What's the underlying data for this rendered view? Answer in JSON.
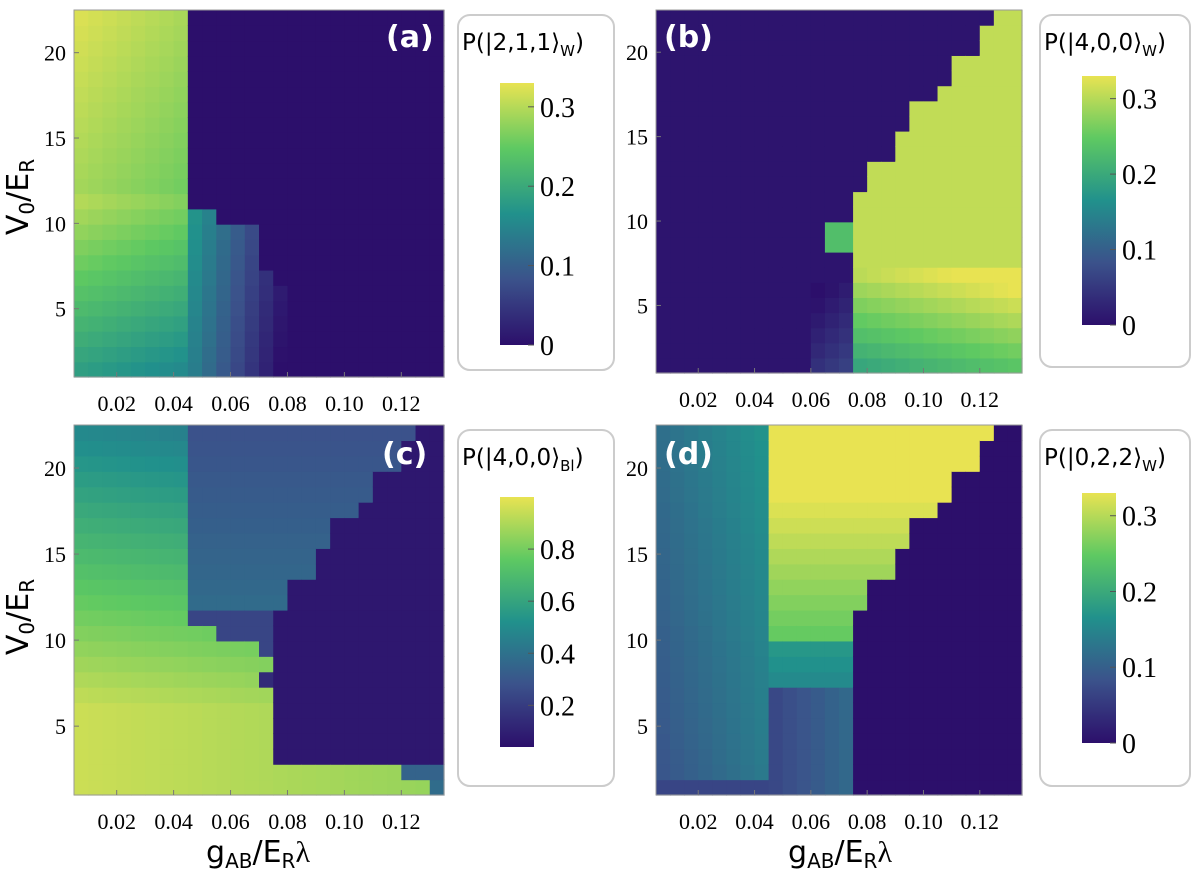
{
  "chart_data": [
    {
      "type": "heatmap",
      "panel": "(a)",
      "colorbar_label": "P(|2,1,1⟩W)",
      "colorbar_title_main": "P(|2,1,1⟩",
      "colorbar_title_sub": "W",
      "colorbar_title_end": ")",
      "colorbar_range": [
        0,
        0.33
      ],
      "colorbar_ticks": [
        0,
        0.1,
        0.2,
        0.3
      ],
      "colorbar_tick_labels": [
        "0",
        "0.1",
        "0.2",
        "0.3"
      ],
      "xlabel": "gAB/ERλ",
      "ylabel": "V0/ER",
      "xlim": [
        0.005,
        0.135
      ],
      "ylim": [
        1,
        22.5
      ],
      "x_ticks": [
        0.02,
        0.04,
        0.06,
        0.08,
        0.1,
        0.12
      ],
      "x_tick_labels": [
        "0.02",
        "0.04",
        "0.06",
        "0.08",
        "0.10",
        "0.12"
      ],
      "y_ticks": [
        5,
        10,
        15,
        20
      ],
      "y_tick_labels": [
        "5",
        "10",
        "15",
        "20"
      ],
      "description_of_regions": "high probability (~0.33) for gAB < 0.045 at large V0, decreasing toward ~0.18 at low V0 and extending to gAB ~0.07 at low V0; ~0 elsewhere"
    },
    {
      "type": "heatmap",
      "panel": "(b)",
      "colorbar_label": "P(|4,0,0⟩W)",
      "colorbar_title_main": "P(|4,0,0⟩",
      "colorbar_title_sub": "W",
      "colorbar_title_end": ")",
      "colorbar_range": [
        0,
        0.33
      ],
      "colorbar_ticks": [
        0,
        0.1,
        0.2,
        0.3
      ],
      "colorbar_tick_labels": [
        "0",
        "0.1",
        "0.2",
        "0.3"
      ],
      "xlabel": "gAB/ERλ",
      "ylabel": "V0/ER",
      "xlim": [
        0.005,
        0.135
      ],
      "ylim": [
        1,
        22.5
      ],
      "x_ticks": [
        0.02,
        0.04,
        0.06,
        0.08,
        0.1,
        0.12
      ],
      "x_tick_labels": [
        "0.02",
        "0.04",
        "0.06",
        "0.08",
        "0.10",
        "0.12"
      ],
      "y_ticks": [
        5,
        10,
        15,
        20
      ],
      "y_tick_labels": [
        "5",
        "10",
        "15",
        "20"
      ],
      "description_of_regions": "~0 except a staircase region at large gAB (right side) reaching ~0.33"
    },
    {
      "type": "heatmap",
      "panel": "(c)",
      "colorbar_label": "P(|4,0,0⟩Bl)",
      "colorbar_title_main": "P(|4,0,0⟩",
      "colorbar_title_sub": "Bl",
      "colorbar_title_end": ")",
      "colorbar_range": [
        0.04,
        1.0
      ],
      "colorbar_ticks": [
        0.2,
        0.4,
        0.6,
        0.8
      ],
      "colorbar_tick_labels": [
        "0.2",
        "0.4",
        "0.6",
        "0.8"
      ],
      "xlabel": "gAB/ERλ",
      "ylabel": "V0/ER",
      "xlim": [
        0.005,
        0.135
      ],
      "ylim": [
        1,
        22.5
      ],
      "x_ticks": [
        0.02,
        0.04,
        0.06,
        0.08,
        0.1,
        0.12
      ],
      "x_tick_labels": [
        "0.02",
        "0.04",
        "0.06",
        "0.08",
        "0.10",
        "0.12"
      ],
      "y_ticks": [
        5,
        10,
        15,
        20
      ],
      "y_tick_labels": [
        "5",
        "10",
        "15",
        "20"
      ],
      "description_of_regions": "high (~0.95) at low gAB and low V0, ~0.5 at low gAB high V0, ~0.3 middle, ~0.05 at large gAB in staircase region"
    },
    {
      "type": "heatmap",
      "panel": "(d)",
      "colorbar_label": "P(|0,2,2⟩W)",
      "colorbar_title_main": "P(|0,2,2⟩",
      "colorbar_title_sub": "W",
      "colorbar_title_end": ")",
      "colorbar_range": [
        0,
        0.33
      ],
      "colorbar_ticks": [
        0,
        0.1,
        0.2,
        0.3
      ],
      "colorbar_tick_labels": [
        "0",
        "0.1",
        "0.2",
        "0.3"
      ],
      "xlabel": "gAB/ERλ",
      "ylabel": "V0/ER",
      "xlim": [
        0.005,
        0.135
      ],
      "ylim": [
        1,
        22.5
      ],
      "x_ticks": [
        0.02,
        0.04,
        0.06,
        0.08,
        0.1,
        0.12
      ],
      "x_tick_labels": [
        "0.02",
        "0.04",
        "0.06",
        "0.08",
        "0.10",
        "0.12"
      ],
      "y_ticks": [
        5,
        10,
        15,
        20
      ],
      "y_tick_labels": [
        "5",
        "10",
        "15",
        "20"
      ],
      "description_of_regions": "~0.33 in an intermediate wedge (gAB 0.045–0.13, V0 > 10), ~0.1 at low gAB, ~0 at large gAB low V0"
    }
  ],
  "axis_titles": {
    "y_main": "V",
    "y_sub0": "0",
    "y_slash": "/E",
    "y_subR": "R",
    "x_main": "g",
    "x_subAB": "AB",
    "x_slash": "/E",
    "x_subR": "R",
    "x_lambda": "λ"
  },
  "colors": {
    "viridis_stops": [
      "#440154",
      "#3b528b",
      "#21918c",
      "#5ec962",
      "#fde725"
    ],
    "low": "#2c0f6b",
    "high": "#e8e352",
    "frame_border": "#cccccc"
  }
}
